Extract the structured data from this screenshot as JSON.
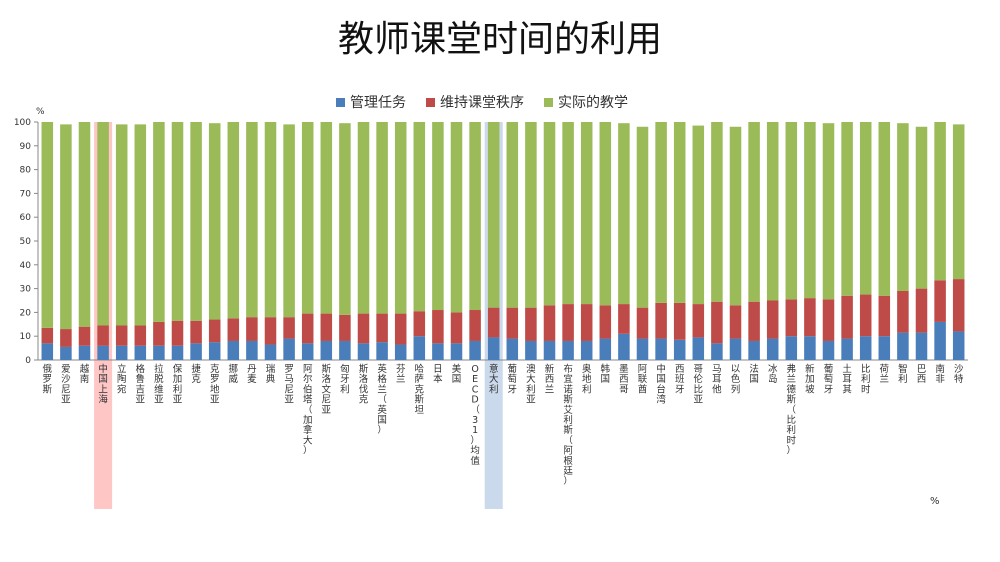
{
  "title": "教师课堂时间的利用",
  "footnote": "%",
  "chart_data": {
    "type": "bar",
    "stacked": true,
    "ylabel": "%",
    "ylim": [
      0,
      100
    ],
    "yticks": [
      0,
      10,
      20,
      30,
      40,
      50,
      60,
      70,
      80,
      90,
      100
    ],
    "legend_position": "top-center",
    "grid": false,
    "categories": [
      "俄罗斯",
      "爱沙尼亚",
      "越南",
      "中国上海",
      "立陶宛",
      "格鲁吉亚",
      "拉脱维亚",
      "保加利亚",
      "捷克",
      "克罗地亚",
      "挪威",
      "丹麦",
      "瑞典",
      "罗马尼亚",
      "阿尔伯塔（加拿大）",
      "斯洛文尼亚",
      "匈牙利",
      "斯洛伐克",
      "英格兰（英国）",
      "芬兰",
      "哈萨克斯坦",
      "日本",
      "美国",
      "OECD（31）均值",
      "意大利",
      "葡萄牙",
      "澳大利亚",
      "新西兰",
      "布宜诺斯艾利斯（阿根廷）",
      "奥地利",
      "韩国",
      "墨西哥",
      "阿联酋",
      "中国台湾",
      "西班牙",
      "哥伦比亚",
      "马耳他",
      "以色列",
      "法国",
      "冰岛",
      "弗兰德斯（比利时）",
      "新加坡",
      "葡萄牙",
      "土耳其",
      "比利时",
      "荷兰",
      "智利",
      "巴西",
      "南非",
      "沙特"
    ],
    "series": [
      {
        "name": "管理任务",
        "color": "#4a7ebb",
        "values": [
          7,
          5.5,
          6,
          6,
          6,
          6,
          6,
          6,
          7,
          7.5,
          8,
          8,
          6.5,
          9,
          7,
          8,
          8,
          7,
          7.5,
          6.5,
          10,
          7,
          7,
          8,
          9.5,
          9,
          8,
          8,
          8,
          8,
          9,
          11,
          9,
          9,
          8.5,
          9.5,
          7,
          9,
          8,
          9,
          10,
          10,
          8,
          9,
          10,
          10,
          11.5,
          11.5,
          16,
          12
        ]
      },
      {
        "name": "维持课堂秩序",
        "color": "#be4b48",
        "values": [
          6.5,
          7.5,
          8,
          8.5,
          8.5,
          8.5,
          10,
          10.5,
          9.5,
          9.5,
          9.5,
          10,
          11.5,
          9,
          12.5,
          11.5,
          11,
          12.5,
          12,
          13,
          10.5,
          14,
          13,
          13,
          12.5,
          13,
          14,
          15,
          15.5,
          15.5,
          14,
          12.5,
          13,
          15,
          15.5,
          14,
          17.5,
          14,
          16.5,
          16,
          15.5,
          16,
          17.5,
          18,
          17.5,
          17,
          17.5,
          18.5,
          17.5,
          22
        ]
      },
      {
        "name": "实际的教学",
        "color": "#9bbb59",
        "values": [
          86.5,
          86,
          86,
          85.5,
          84.5,
          84.5,
          84,
          83.5,
          83.5,
          82.5,
          82.5,
          82,
          82,
          81,
          80.5,
          80.5,
          80.5,
          80.5,
          80.5,
          80.5,
          79.5,
          79,
          80,
          79,
          78,
          78,
          78,
          77,
          76.5,
          76.5,
          77,
          76,
          76,
          76,
          76,
          75,
          75.5,
          75,
          75.5,
          75,
          74.5,
          74,
          74,
          73,
          72.5,
          73,
          70.5,
          68,
          66.5,
          65
        ]
      }
    ],
    "highlighted_categories": [
      "中国上海",
      "意大利"
    ],
    "highlight_colors": {
      "中国上海": "#ffb3b3",
      "意大利": "#b8cce4"
    }
  }
}
